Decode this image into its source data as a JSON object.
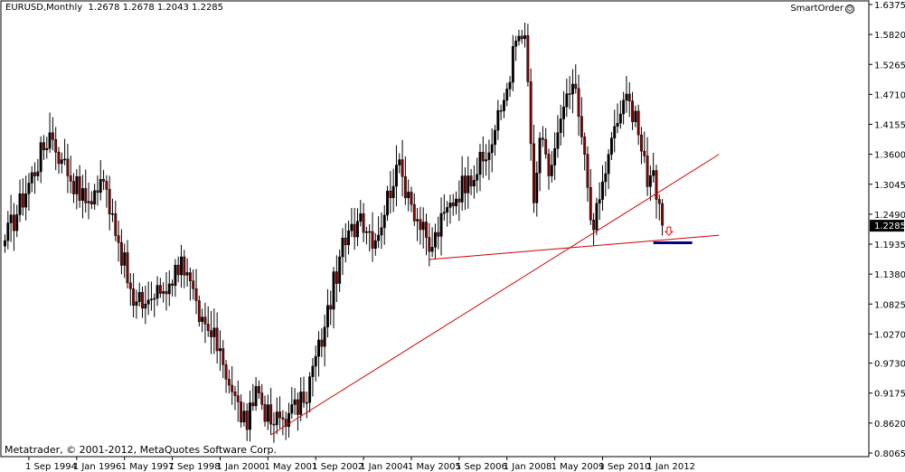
{
  "header": {
    "symbol": "EURUSD,Monthly",
    "ohlc": "1.2678 1.2678 1.2043 1.2285"
  },
  "indicator": {
    "label": "SmartOrder",
    "icon": "smiley-icon"
  },
  "copyright": "Metatrader, © 2001-2012, MetaQuotes Software Corp.",
  "colors": {
    "bull": "#000000",
    "bear": "#8b0000",
    "trendline": "#cc0000",
    "zone": "#00008b",
    "arrow": "#ff0000",
    "grid": "#cccccc"
  },
  "chart_data": {
    "type": "candlestick",
    "price_axis": {
      "labels": [
        "1.6375",
        "1.5820",
        "1.5265",
        "1.4710",
        "1.4155",
        "1.3600",
        "1.3045",
        "1.2490",
        "1.1935",
        "1.1380",
        "1.0825",
        "1.0270",
        "0.9730",
        "0.9175",
        "0.8620",
        "0.8065"
      ],
      "range": [
        0.8065,
        1.6375
      ],
      "current_price": "1.2285"
    },
    "time_axis": {
      "labels": [
        "1 Sep 1994",
        "1 Jan 1996",
        "1 May 1997",
        "1 Sep 1998",
        "1 Jan 2000",
        "1 May 2001",
        "1 Sep 2002",
        "1 Jan 2004",
        "1 May 2005",
        "1 Sep 2006",
        "1 Jan 2008",
        "1 May 2009",
        "1 Sep 2010",
        "1 Jan 2012"
      ]
    },
    "anchors": [
      [
        "1994-01",
        1.2
      ],
      [
        "1995-04",
        1.4
      ],
      [
        "1995-08",
        1.35
      ],
      [
        "1996-04",
        1.27
      ],
      [
        "1996-10",
        1.31
      ],
      [
        "1997-01",
        1.25
      ],
      [
        "1997-08",
        1.08
      ],
      [
        "1998-01",
        1.09
      ],
      [
        "1998-08",
        1.12
      ],
      [
        "1998-12",
        1.17
      ],
      [
        "1999-06",
        1.05
      ],
      [
        "2000-01",
        1.0
      ],
      [
        "2000-05",
        0.92
      ],
      [
        "2000-10",
        0.85
      ],
      [
        "2001-01",
        0.93
      ],
      [
        "2001-06",
        0.86
      ],
      [
        "2001-12",
        0.88
      ],
      [
        "2002-05",
        0.9
      ],
      [
        "2002-12",
        1.04
      ],
      [
        "2003-05",
        1.17
      ],
      [
        "2003-12",
        1.25
      ],
      [
        "2004-05",
        1.2
      ],
      [
        "2004-12",
        1.34
      ],
      [
        "2005-04",
        1.29
      ],
      [
        "2005-11",
        1.18
      ],
      [
        "2006-06",
        1.27
      ],
      [
        "2006-12",
        1.32
      ],
      [
        "2007-06",
        1.35
      ],
      [
        "2007-12",
        1.46
      ],
      [
        "2008-04",
        1.57
      ],
      [
        "2008-07",
        1.58
      ],
      [
        "2008-10",
        1.27
      ],
      [
        "2008-12",
        1.39
      ],
      [
        "2009-03",
        1.32
      ],
      [
        "2009-06",
        1.4
      ],
      [
        "2009-11",
        1.49
      ],
      [
        "2010-01",
        1.43
      ],
      [
        "2010-06",
        1.22
      ],
      [
        "2010-11",
        1.36
      ],
      [
        "2011-04",
        1.46
      ],
      [
        "2011-08",
        1.44
      ],
      [
        "2011-12",
        1.3
      ],
      [
        "2012-02",
        1.33
      ],
      [
        "2012-05",
        1.2285
      ]
    ],
    "lines": [
      {
        "from": [
          "2001-06",
          0.84
        ],
        "to": [
          "2013-12",
          1.36
        ]
      },
      {
        "from": [
          "2005-11",
          1.165
        ],
        "to": [
          "2013-12",
          1.21
        ]
      }
    ],
    "zone": {
      "from": "2012-02",
      "to": "2013-03",
      "price": 1.196
    },
    "arrow": {
      "at": "2012-06",
      "price": 1.215
    }
  }
}
